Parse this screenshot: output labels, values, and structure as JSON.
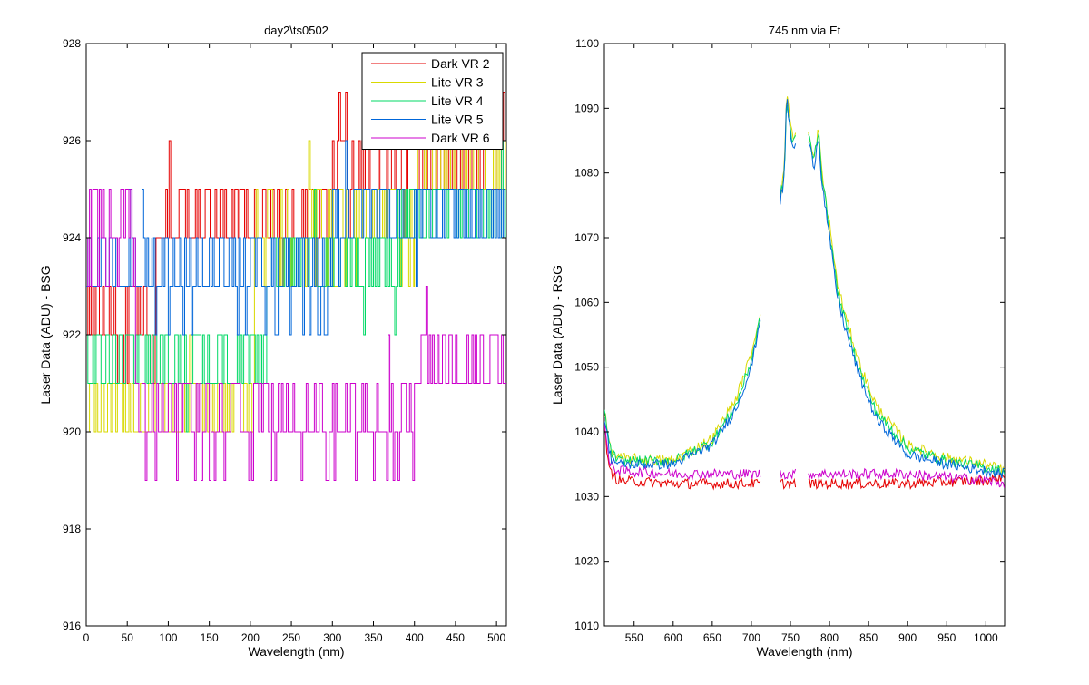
{
  "chart_data": [
    {
      "type": "line",
      "title": "day2\\ts0502",
      "xlabel": "Wavelength (nm)",
      "ylabel": "Laser Data (ADU) - BSG",
      "xlim": [
        0,
        512
      ],
      "ylim": [
        916,
        928
      ],
      "xticks": [
        0,
        50,
        100,
        150,
        200,
        250,
        300,
        350,
        400,
        450,
        500
      ],
      "yticks": [
        916,
        918,
        920,
        922,
        924,
        926,
        928
      ],
      "grid": false,
      "legend": "top-right",
      "series": [
        {
          "name": "Dark VR 2",
          "color": "#e60000",
          "segments": [
            {
              "x0": 0,
              "x1": 85,
              "levels": [
                922,
                923,
                922,
                921,
                922,
                923
              ],
              "base": 922.5
            },
            {
              "x0": 85,
              "x1": 300,
              "levels": [
                924,
                925,
                924,
                925
              ],
              "base": 924.5
            },
            {
              "x0": 300,
              "x1": 512,
              "levels": [
                925,
                926,
                925,
                926,
                927
              ],
              "base": 925.5
            }
          ]
        },
        {
          "name": "Lite VR 3",
          "color": "#d9d900",
          "segments": [
            {
              "x0": 0,
              "x1": 205,
              "levels": [
                920,
                921,
                920,
                921
              ],
              "base": 920.5
            },
            {
              "x0": 205,
              "x1": 400,
              "levels": [
                924,
                925,
                924,
                923
              ],
              "base": 924.2
            },
            {
              "x0": 400,
              "x1": 512,
              "levels": [
                925,
                926,
                925,
                926
              ],
              "base": 925.5
            }
          ]
        },
        {
          "name": "Lite VR 4",
          "color": "#00d966",
          "segments": [
            {
              "x0": 0,
              "x1": 220,
              "levels": [
                921,
                922,
                921,
                922
              ],
              "base": 921.5
            },
            {
              "x0": 220,
              "x1": 380,
              "levels": [
                923,
                924,
                923,
                924
              ],
              "base": 923.5
            },
            {
              "x0": 380,
              "x1": 512,
              "levels": [
                924,
                925,
                924,
                925
              ],
              "base": 924.5
            }
          ]
        },
        {
          "name": "Lite VR 5",
          "color": "#0066d9",
          "segments": [
            {
              "x0": 0,
              "x1": 80,
              "levels": [
                923,
                924,
                923
              ],
              "base": 923.5
            },
            {
              "x0": 80,
              "x1": 300,
              "levels": [
                923,
                924,
                922,
                923
              ],
              "base": 923.3
            },
            {
              "x0": 300,
              "x1": 512,
              "levels": [
                924,
                925,
                924,
                925
              ],
              "base": 924.5
            }
          ]
        },
        {
          "name": "Dark VR 6",
          "color": "#cc00cc",
          "segments": [
            {
              "x0": 0,
              "x1": 60,
              "levels": [
                923,
                924,
                925,
                923
              ],
              "base": 924
            },
            {
              "x0": 60,
              "x1": 400,
              "levels": [
                919,
                920,
                921,
                920
              ],
              "base": 920
            },
            {
              "x0": 400,
              "x1": 512,
              "levels": [
                921,
                922,
                921,
                922
              ],
              "base": 921.5
            }
          ]
        }
      ]
    },
    {
      "type": "line",
      "title": "745 nm via Et",
      "xlabel": "Wavelength (nm)",
      "ylabel": "Laser Data (ADU) - RSG",
      "xlim": [
        512,
        1024
      ],
      "ylim": [
        1010,
        1100
      ],
      "xticks": [
        550,
        600,
        650,
        700,
        750,
        800,
        850,
        900,
        950,
        1000
      ],
      "yticks": [
        1010,
        1020,
        1030,
        1040,
        1050,
        1060,
        1070,
        1080,
        1090,
        1100
      ],
      "grid": false,
      "series": [
        {
          "color": "#e60000",
          "points": [
            [
              512,
              1041
            ],
            [
              518,
              1034
            ],
            [
              530,
              1032.5
            ],
            [
              600,
              1032
            ],
            [
              700,
              1032
            ],
            [
              800,
              1032
            ],
            [
              900,
              1032
            ],
            [
              1000,
              1032.5
            ],
            [
              1024,
              1033
            ]
          ]
        },
        {
          "color": "#cc00cc",
          "points": [
            [
              512,
              1042
            ],
            [
              518,
              1035
            ],
            [
              530,
              1034
            ],
            [
              600,
              1033.5
            ],
            [
              700,
              1033.5
            ],
            [
              800,
              1033.5
            ],
            [
              900,
              1033.5
            ],
            [
              1000,
              1032.5
            ],
            [
              1024,
              1032
            ]
          ]
        },
        {
          "color": "#d9d900",
          "points": [
            [
              512,
              1043
            ],
            [
              520,
              1037
            ],
            [
              530,
              1036
            ],
            [
              600,
              1035.5
            ],
            [
              650,
              1039
            ],
            [
              680,
              1045
            ],
            [
              700,
              1052
            ],
            [
              712,
              1059
            ],
            [
              736,
              1076
            ],
            [
              742,
              1080
            ],
            [
              745,
              1093
            ],
            [
              752,
              1086
            ],
            [
              773,
              1086
            ],
            [
              780,
              1082
            ],
            [
              786,
              1087
            ],
            [
              790,
              1080
            ],
            [
              800,
              1072
            ],
            [
              810,
              1063
            ],
            [
              820,
              1058
            ],
            [
              840,
              1050
            ],
            [
              860,
              1044
            ],
            [
              900,
              1038
            ],
            [
              950,
              1036
            ],
            [
              1000,
              1035
            ],
            [
              1024,
              1034
            ]
          ]
        },
        {
          "color": "#00d966",
          "points": [
            [
              512,
              1043
            ],
            [
              520,
              1037
            ],
            [
              530,
              1035.5
            ],
            [
              600,
              1035.5
            ],
            [
              650,
              1038.5
            ],
            [
              680,
              1044
            ],
            [
              700,
              1051
            ],
            [
              712,
              1058
            ],
            [
              736,
              1076
            ],
            [
              742,
              1079
            ],
            [
              745,
              1091
            ],
            [
              752,
              1085
            ],
            [
              773,
              1086
            ],
            [
              780,
              1082
            ],
            [
              786,
              1087
            ],
            [
              790,
              1080
            ],
            [
              800,
              1071
            ],
            [
              810,
              1062
            ],
            [
              820,
              1057
            ],
            [
              840,
              1049
            ],
            [
              860,
              1043
            ],
            [
              900,
              1037.5
            ],
            [
              950,
              1035.5
            ],
            [
              1000,
              1034.5
            ],
            [
              1024,
              1034
            ]
          ]
        },
        {
          "color": "#0066d9",
          "points": [
            [
              512,
              1042
            ],
            [
              520,
              1036
            ],
            [
              530,
              1035
            ],
            [
              600,
              1035
            ],
            [
              650,
              1038
            ],
            [
              680,
              1043.5
            ],
            [
              700,
              1050
            ],
            [
              712,
              1058
            ],
            [
              736,
              1075
            ],
            [
              742,
              1079
            ],
            [
              745,
              1092
            ],
            [
              752,
              1084
            ],
            [
              773,
              1085
            ],
            [
              780,
              1081
            ],
            [
              786,
              1086
            ],
            [
              790,
              1079
            ],
            [
              800,
              1070
            ],
            [
              810,
              1061
            ],
            [
              820,
              1056
            ],
            [
              840,
              1048
            ],
            [
              860,
              1042
            ],
            [
              900,
              1036.5
            ],
            [
              950,
              1035
            ],
            [
              1000,
              1034
            ],
            [
              1024,
              1033.5
            ]
          ]
        }
      ],
      "gaps": [
        [
          712,
          736
        ],
        [
          757,
          773
        ]
      ]
    }
  ]
}
